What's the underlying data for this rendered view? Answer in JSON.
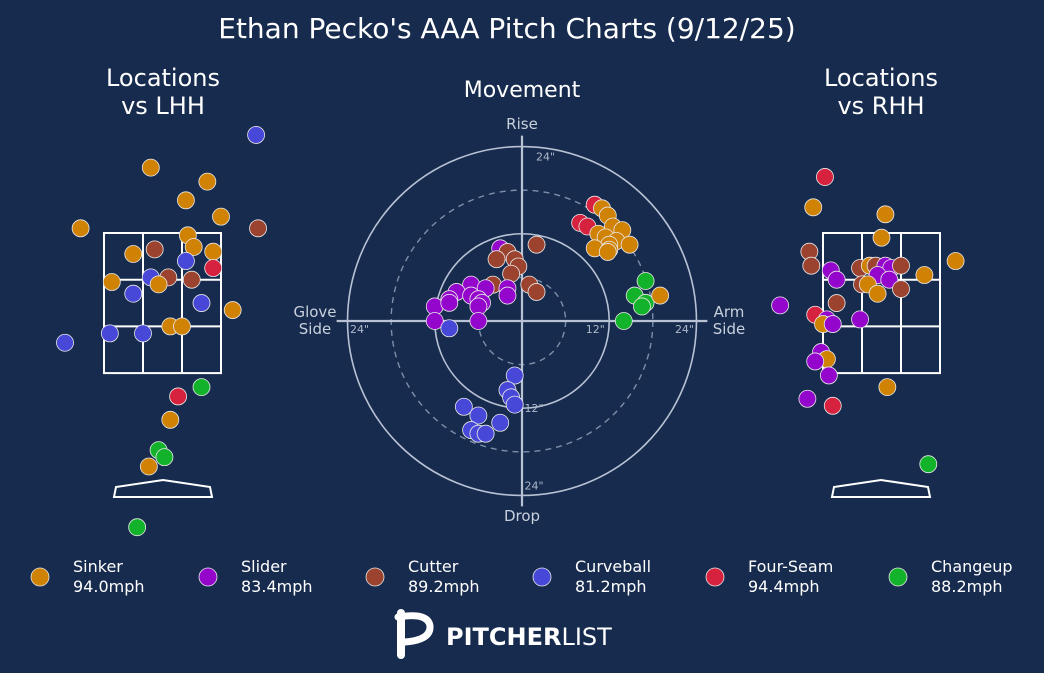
{
  "page": {
    "title": "Ethan Pecko's AAA Pitch Charts (9/12/25)",
    "logo_text_bold": "PITCHER",
    "logo_text_light": "LIST",
    "background": "#162b4d"
  },
  "colors": {
    "Sinker": "#d08205",
    "Slider": "#9406cc",
    "Cutter": "#9c4330",
    "Curveball": "#4747d8",
    "Four-Seam": "#d7223f",
    "Changeup": "#12b32a"
  },
  "legend": [
    {
      "pitch": "Sinker",
      "velo": "94.0mph"
    },
    {
      "pitch": "Slider",
      "velo": "83.4mph"
    },
    {
      "pitch": "Cutter",
      "velo": "89.2mph"
    },
    {
      "pitch": "Curveball",
      "velo": "81.2mph"
    },
    {
      "pitch": "Four-Seam",
      "velo": "94.4mph"
    },
    {
      "pitch": "Changeup",
      "velo": "88.2mph"
    }
  ],
  "chart_data": [
    {
      "type": "scatter",
      "title": "Locations\nvs LHH",
      "units": "relative to strike zone (x: 0 = left edge, 3 = right edge; y: 0 = top, 3 = bottom)",
      "points": [
        {
          "pitch": "Curveball",
          "x": 3.9,
          "y": -2.1
        },
        {
          "pitch": "Sinker",
          "x": 1.2,
          "y": -1.4
        },
        {
          "pitch": "Sinker",
          "x": 2.65,
          "y": -1.1
        },
        {
          "pitch": "Sinker",
          "x": 2.1,
          "y": -0.7
        },
        {
          "pitch": "Sinker",
          "x": 3.0,
          "y": -0.35
        },
        {
          "pitch": "Sinker",
          "x": -0.6,
          "y": -0.1
        },
        {
          "pitch": "Cutter",
          "x": 3.95,
          "y": -0.1
        },
        {
          "pitch": "Sinker",
          "x": 2.15,
          "y": 0.05
        },
        {
          "pitch": "Sinker",
          "x": 2.3,
          "y": 0.3
        },
        {
          "pitch": "Cutter",
          "x": 1.3,
          "y": 0.35
        },
        {
          "pitch": "Sinker",
          "x": 0.75,
          "y": 0.45
        },
        {
          "pitch": "Sinker",
          "x": 2.8,
          "y": 0.4
        },
        {
          "pitch": "Curveball",
          "x": 2.1,
          "y": 0.6
        },
        {
          "pitch": "Four-Seam",
          "x": 2.8,
          "y": 0.75
        },
        {
          "pitch": "Curveball",
          "x": 1.2,
          "y": 0.95
        },
        {
          "pitch": "Cutter",
          "x": 1.65,
          "y": 0.95
        },
        {
          "pitch": "Cutter",
          "x": 2.25,
          "y": 1.0
        },
        {
          "pitch": "Sinker",
          "x": 0.2,
          "y": 1.05
        },
        {
          "pitch": "Sinker",
          "x": 1.4,
          "y": 1.1
        },
        {
          "pitch": "Curveball",
          "x": 0.75,
          "y": 1.3
        },
        {
          "pitch": "Curveball",
          "x": 2.5,
          "y": 1.5
        },
        {
          "pitch": "Sinker",
          "x": 3.3,
          "y": 1.65
        },
        {
          "pitch": "Sinker",
          "x": 1.7,
          "y": 2.0
        },
        {
          "pitch": "Sinker",
          "x": 2.0,
          "y": 2.0
        },
        {
          "pitch": "Curveball",
          "x": 0.15,
          "y": 2.15
        },
        {
          "pitch": "Curveball",
          "x": 1.0,
          "y": 2.15
        },
        {
          "pitch": "Curveball",
          "x": -1.0,
          "y": 2.35
        },
        {
          "pitch": "Changeup",
          "x": 2.5,
          "y": 3.3
        },
        {
          "pitch": "Four-Seam",
          "x": 1.9,
          "y": 3.5
        },
        {
          "pitch": "Sinker",
          "x": 1.7,
          "y": 4.0
        },
        {
          "pitch": "Changeup",
          "x": 1.4,
          "y": 4.65
        },
        {
          "pitch": "Changeup",
          "x": 1.55,
          "y": 4.8
        },
        {
          "pitch": "Sinker",
          "x": 1.15,
          "y": 5.0
        },
        {
          "pitch": "Changeup",
          "x": 0.85,
          "y": 6.3
        }
      ]
    },
    {
      "type": "scatter",
      "title": "Movement",
      "xlabel_left": "Glove\nSide",
      "xlabel_right": "Arm\nSide",
      "ylabel_top": "Rise",
      "ylabel_bottom": "Drop",
      "units": "inches",
      "ring_labels": [
        "24\"",
        "12\"",
        "24\"",
        "12\"",
        "24\"",
        "12\"",
        "24\""
      ],
      "xlim": [
        -24,
        24
      ],
      "ylim": [
        -24,
        24
      ],
      "points": [
        {
          "pitch": "Four-Seam",
          "x": 10.0,
          "y": 16.0
        },
        {
          "pitch": "Sinker",
          "x": 11.0,
          "y": 15.5
        },
        {
          "pitch": "Sinker",
          "x": 11.8,
          "y": 14.5
        },
        {
          "pitch": "Four-Seam",
          "x": 8.0,
          "y": 13.5
        },
        {
          "pitch": "Four-Seam",
          "x": 9.0,
          "y": 13.0
        },
        {
          "pitch": "Sinker",
          "x": 12.5,
          "y": 13.0
        },
        {
          "pitch": "Sinker",
          "x": 13.8,
          "y": 12.5
        },
        {
          "pitch": "Sinker",
          "x": 10.5,
          "y": 12.0
        },
        {
          "pitch": "Sinker",
          "x": 11.5,
          "y": 11.5
        },
        {
          "pitch": "Sinker",
          "x": 13.0,
          "y": 11.0
        },
        {
          "pitch": "Sinker",
          "x": 14.8,
          "y": 10.5
        },
        {
          "pitch": "Sinker",
          "x": 12.0,
          "y": 10.5
        },
        {
          "pitch": "Sinker",
          "x": 10.0,
          "y": 10.0
        },
        {
          "pitch": "Sinker",
          "x": 12.0,
          "y": 9.8
        },
        {
          "pitch": "Sinker",
          "x": 11.8,
          "y": 9.5
        },
        {
          "pitch": "Cutter",
          "x": 2.0,
          "y": 10.5
        },
        {
          "pitch": "Slider",
          "x": -3.0,
          "y": 10.0
        },
        {
          "pitch": "Cutter",
          "x": -2.0,
          "y": 9.5
        },
        {
          "pitch": "Cutter",
          "x": -1.0,
          "y": 8.5
        },
        {
          "pitch": "Cutter",
          "x": -0.5,
          "y": 7.5
        },
        {
          "pitch": "Cutter",
          "x": -3.5,
          "y": 8.5
        },
        {
          "pitch": "Cutter",
          "x": -1.5,
          "y": 6.5
        },
        {
          "pitch": "Cutter",
          "x": -4.0,
          "y": 5.0
        },
        {
          "pitch": "Slider",
          "x": -7.0,
          "y": 5.0
        },
        {
          "pitch": "Slider",
          "x": -5.0,
          "y": 4.5
        },
        {
          "pitch": "Slider",
          "x": -2.0,
          "y": 4.5
        },
        {
          "pitch": "Cutter",
          "x": 1.0,
          "y": 5.0
        },
        {
          "pitch": "Cutter",
          "x": 2.0,
          "y": 4.0
        },
        {
          "pitch": "Slider",
          "x": -9.0,
          "y": 4.0
        },
        {
          "pitch": "Slider",
          "x": -7.0,
          "y": 3.5
        },
        {
          "pitch": "Slider",
          "x": -6.0,
          "y": 3.0
        },
        {
          "pitch": "Slider",
          "x": -2.0,
          "y": 3.5
        },
        {
          "pitch": "Slider",
          "x": -10.0,
          "y": 3.0
        },
        {
          "pitch": "Slider",
          "x": -5.5,
          "y": 2.5
        },
        {
          "pitch": "Slider",
          "x": -12.0,
          "y": 2.0
        },
        {
          "pitch": "Slider",
          "x": -10.0,
          "y": 2.5
        },
        {
          "pitch": "Slider",
          "x": -6.0,
          "y": 2.0
        },
        {
          "pitch": "Slider",
          "x": -12.0,
          "y": 0.0
        },
        {
          "pitch": "Slider",
          "x": -6.0,
          "y": 0.0
        },
        {
          "pitch": "Curveball",
          "x": -10.0,
          "y": -1.0
        },
        {
          "pitch": "Changeup",
          "x": 17.0,
          "y": 5.5
        },
        {
          "pitch": "Changeup",
          "x": 15.5,
          "y": 3.5
        },
        {
          "pitch": "Changeup",
          "x": 17.0,
          "y": 2.5
        },
        {
          "pitch": "Changeup",
          "x": 16.5,
          "y": 2.0
        },
        {
          "pitch": "Sinker",
          "x": 19.0,
          "y": 3.5
        },
        {
          "pitch": "Changeup",
          "x": 14.0,
          "y": 0.0
        },
        {
          "pitch": "Curveball",
          "x": -1.0,
          "y": -7.5
        },
        {
          "pitch": "Curveball",
          "x": -2.0,
          "y": -9.5
        },
        {
          "pitch": "Curveball",
          "x": -1.5,
          "y": -10.5
        },
        {
          "pitch": "Curveball",
          "x": -1.0,
          "y": -11.5
        },
        {
          "pitch": "Curveball",
          "x": -8.0,
          "y": -11.8
        },
        {
          "pitch": "Curveball",
          "x": -6.0,
          "y": -13.0
        },
        {
          "pitch": "Curveball",
          "x": -3.0,
          "y": -14.0
        },
        {
          "pitch": "Curveball",
          "x": -7.0,
          "y": -15.0
        },
        {
          "pitch": "Curveball",
          "x": -6.0,
          "y": -15.5
        },
        {
          "pitch": "Curveball",
          "x": -5.0,
          "y": -15.5
        }
      ]
    },
    {
      "type": "scatter",
      "title": "Locations\nvs RHH",
      "units": "relative to strike zone (x: 0 = left edge, 3 = right edge; y: 0 = top, 3 = bottom)",
      "points": [
        {
          "pitch": "Four-Seam",
          "x": 0.05,
          "y": -1.2
        },
        {
          "pitch": "Sinker",
          "x": -0.25,
          "y": -0.55
        },
        {
          "pitch": "Sinker",
          "x": 1.6,
          "y": -0.4
        },
        {
          "pitch": "Sinker",
          "x": 1.5,
          "y": 0.1
        },
        {
          "pitch": "Cutter",
          "x": -0.35,
          "y": 0.4
        },
        {
          "pitch": "Cutter",
          "x": -0.3,
          "y": 0.7
        },
        {
          "pitch": "Slider",
          "x": 0.2,
          "y": 0.8
        },
        {
          "pitch": "Slider",
          "x": 0.35,
          "y": 1.0
        },
        {
          "pitch": "Cutter",
          "x": 0.95,
          "y": 0.75
        },
        {
          "pitch": "Sinker",
          "x": 1.2,
          "y": 0.7
        },
        {
          "pitch": "Cutter",
          "x": 1.35,
          "y": 0.7
        },
        {
          "pitch": "Slider",
          "x": 1.6,
          "y": 0.7
        },
        {
          "pitch": "Slider",
          "x": 1.75,
          "y": 0.75
        },
        {
          "pitch": "Cutter",
          "x": 2.0,
          "y": 0.7
        },
        {
          "pitch": "Slider",
          "x": 1.4,
          "y": 0.9
        },
        {
          "pitch": "Slider",
          "x": 1.7,
          "y": 1.0
        },
        {
          "pitch": "Sinker",
          "x": 2.6,
          "y": 0.9
        },
        {
          "pitch": "Sinker",
          "x": 3.4,
          "y": 0.6
        },
        {
          "pitch": "Cutter",
          "x": 1.0,
          "y": 1.1
        },
        {
          "pitch": "Sinker",
          "x": 1.15,
          "y": 1.1
        },
        {
          "pitch": "Cutter",
          "x": 2.0,
          "y": 1.2
        },
        {
          "pitch": "Sinker",
          "x": 1.4,
          "y": 1.3
        },
        {
          "pitch": "Slider",
          "x": -1.1,
          "y": 1.55
        },
        {
          "pitch": "Cutter",
          "x": 0.35,
          "y": 1.5
        },
        {
          "pitch": "Four-Seam",
          "x": -0.2,
          "y": 1.75
        },
        {
          "pitch": "Slider",
          "x": 0.1,
          "y": 1.85
        },
        {
          "pitch": "Sinker",
          "x": 0.0,
          "y": 1.95
        },
        {
          "pitch": "Slider",
          "x": 0.25,
          "y": 1.95
        },
        {
          "pitch": "Slider",
          "x": 0.95,
          "y": 1.85
        },
        {
          "pitch": "Slider",
          "x": -0.05,
          "y": 2.55
        },
        {
          "pitch": "Sinker",
          "x": 0.1,
          "y": 2.7
        },
        {
          "pitch": "Slider",
          "x": -0.2,
          "y": 2.75
        },
        {
          "pitch": "Slider",
          "x": 0.15,
          "y": 3.05
        },
        {
          "pitch": "Sinker",
          "x": 1.65,
          "y": 3.3
        },
        {
          "pitch": "Slider",
          "x": -0.4,
          "y": 3.55
        },
        {
          "pitch": "Four-Seam",
          "x": 0.25,
          "y": 3.7
        },
        {
          "pitch": "Changeup",
          "x": 2.7,
          "y": 4.95
        }
      ]
    }
  ]
}
